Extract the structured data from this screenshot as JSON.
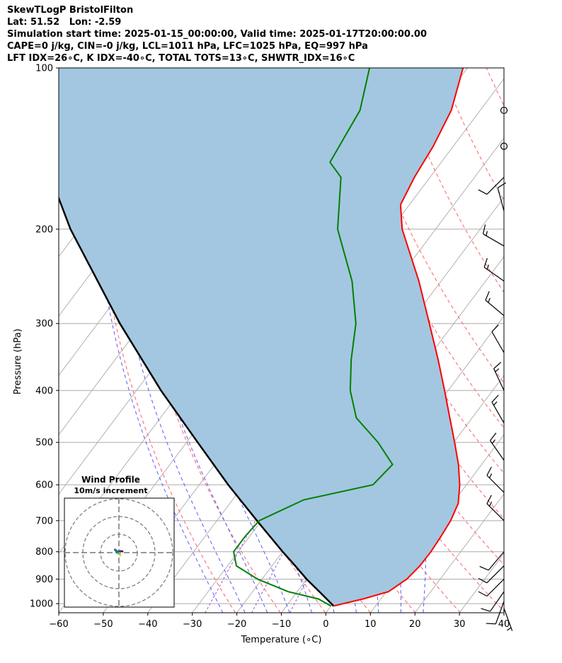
{
  "header": {
    "lines": [
      "SkewTLogP BristolFilton",
      "Lat: 51.52   Lon: -2.59",
      "Simulation start time: 2025-01-15_00:00:00, Valid time: 2025-01-17T20:00:00.00",
      "CAPE=0 j/kg, CIN=-0 j/kg, LCL=1011 hPa, LFC=1025 hPa, EQ=997 hPa",
      "LFT IDX=26∘C, K IDX=-40∘C, TOTAL TOTS=13∘C, SHWTR_IDX=16∘C"
    ]
  },
  "chart_data": {
    "type": "skewt-logp",
    "xlabel": "Temperature (∘C)",
    "ylabel": "Pressure (hPa)",
    "xlim": [
      -60,
      40
    ],
    "ylim": [
      1040,
      100
    ],
    "x_ticks": [
      -60,
      -50,
      -40,
      -30,
      -20,
      -10,
      0,
      10,
      20,
      30,
      40
    ],
    "y_ticks": [
      100,
      200,
      300,
      400,
      500,
      600,
      700,
      800,
      900,
      1000
    ],
    "y_scale": "log",
    "grid": true,
    "colors": {
      "temperature": "#ff0000",
      "dewpoint": "#008000",
      "parcel": "#000000",
      "shading": "#a3c7e0",
      "dry_adiabats": "#ff6060",
      "moist_adiabats": "#5a5aff",
      "mixing_ratio": "#9a4fd0",
      "isotherms": "#aaaaaa"
    },
    "temperature": [
      {
        "p": 1010,
        "t": 0.6
      },
      {
        "p": 980,
        "t": 6
      },
      {
        "p": 950,
        "t": 10.5
      },
      {
        "p": 900,
        "t": 12.5
      },
      {
        "p": 850,
        "t": 13.2
      },
      {
        "p": 800,
        "t": 13.3
      },
      {
        "p": 750,
        "t": 13.0
      },
      {
        "p": 700,
        "t": 12.5
      },
      {
        "p": 650,
        "t": 11.3
      },
      {
        "p": 600,
        "t": 8.5
      },
      {
        "p": 550,
        "t": 4.8
      },
      {
        "p": 500,
        "t": 0.2
      },
      {
        "p": 450,
        "t": -5.0
      },
      {
        "p": 400,
        "t": -10.8
      },
      {
        "p": 350,
        "t": -17.5
      },
      {
        "p": 300,
        "t": -25.5
      },
      {
        "p": 250,
        "t": -35.0
      },
      {
        "p": 200,
        "t": -47.5
      },
      {
        "p": 180,
        "t": -52.0
      },
      {
        "p": 160,
        "t": -53.5
      },
      {
        "p": 140,
        "t": -54.5
      },
      {
        "p": 120,
        "t": -56.5
      },
      {
        "p": 100,
        "t": -61.0
      }
    ],
    "dewpoint": [
      {
        "p": 1010,
        "t": 0.0
      },
      {
        "p": 980,
        "t": -4
      },
      {
        "p": 950,
        "t": -12
      },
      {
        "p": 900,
        "t": -21
      },
      {
        "p": 850,
        "t": -28.0
      },
      {
        "p": 800,
        "t": -31.0
      },
      {
        "p": 750,
        "t": -31.0
      },
      {
        "p": 700,
        "t": -30.5
      },
      {
        "p": 640,
        "t": -24.0
      },
      {
        "p": 600,
        "t": -11.0
      },
      {
        "p": 550,
        "t": -10.0
      },
      {
        "p": 500,
        "t": -17.0
      },
      {
        "p": 450,
        "t": -26.0
      },
      {
        "p": 400,
        "t": -32.0
      },
      {
        "p": 350,
        "t": -37.0
      },
      {
        "p": 300,
        "t": -42.0
      },
      {
        "p": 250,
        "t": -50.0
      },
      {
        "p": 200,
        "t": -62.0
      },
      {
        "p": 160,
        "t": -70.0
      },
      {
        "p": 150,
        "t": -75.0
      },
      {
        "p": 120,
        "t": -77.0
      },
      {
        "p": 100,
        "t": -82.0
      }
    ],
    "parcel": [
      {
        "p": 1010,
        "t": 0.6
      },
      {
        "p": 950,
        "t": -5.0
      },
      {
        "p": 900,
        "t": -10.0
      },
      {
        "p": 850,
        "t": -14.8
      },
      {
        "p": 800,
        "t": -20.0
      },
      {
        "p": 700,
        "t": -31.0
      },
      {
        "p": 600,
        "t": -43.5
      },
      {
        "p": 500,
        "t": -57.5
      },
      {
        "p": 400,
        "t": -74.5
      },
      {
        "p": 300,
        "t": -95.0
      },
      {
        "p": 200,
        "t": -122.0
      },
      {
        "p": 150,
        "t": -139.0
      },
      {
        "p": 100,
        "t": -162.0
      }
    ],
    "dry_adiabats_theta_K": [
      250,
      260,
      270,
      280,
      290,
      300,
      310,
      320,
      330,
      340,
      350,
      360,
      380,
      400,
      420,
      440
    ],
    "moist_adiabats_K": [
      250,
      255,
      260,
      265,
      270,
      275,
      280,
      285,
      290,
      295
    ],
    "mixing_ratios_gkg": [
      0.4,
      1,
      2
    ],
    "wind_barbs": [
      {
        "p": 1020,
        "speed_kt": 5,
        "dir_deg": 160
      },
      {
        "p": 990,
        "speed_kt": 10,
        "dir_deg": 200
      },
      {
        "p": 950,
        "speed_kt": 10,
        "dir_deg": 215
      },
      {
        "p": 900,
        "speed_kt": 10,
        "dir_deg": 225
      },
      {
        "p": 850,
        "speed_kt": 10,
        "dir_deg": 225
      },
      {
        "p": 800,
        "speed_kt": 10,
        "dir_deg": 220
      },
      {
        "p": 700,
        "speed_kt": 15,
        "dir_deg": 315
      },
      {
        "p": 620,
        "speed_kt": 15,
        "dir_deg": 315
      },
      {
        "p": 540,
        "speed_kt": 15,
        "dir_deg": 325
      },
      {
        "p": 460,
        "speed_kt": 15,
        "dir_deg": 330
      },
      {
        "p": 400,
        "speed_kt": 15,
        "dir_deg": 335
      },
      {
        "p": 340,
        "speed_kt": 10,
        "dir_deg": 330
      },
      {
        "p": 290,
        "speed_kt": 15,
        "dir_deg": 310
      },
      {
        "p": 250,
        "speed_kt": 15,
        "dir_deg": 305
      },
      {
        "p": 215,
        "speed_kt": 15,
        "dir_deg": 300
      },
      {
        "p": 185,
        "speed_kt": 10,
        "dir_deg": 345
      },
      {
        "p": 160,
        "speed_kt": 10,
        "dir_deg": 225
      },
      {
        "p": 140,
        "speed_kt": 0,
        "dir_deg": 0
      },
      {
        "p": 120,
        "speed_kt": 0,
        "dir_deg": 0
      }
    ],
    "hodograph": {
      "title": "Wind Profile",
      "subtitle": "10m/s increment",
      "rings_ms": [
        10,
        20,
        30
      ],
      "path": [
        [
          1.5,
          -0.5
        ],
        [
          1.7,
          -1.0
        ],
        [
          1.6,
          0.5
        ],
        [
          1.2,
          1.5
        ],
        [
          0.5,
          2.0
        ],
        [
          -1.0,
          2.2
        ],
        [
          -2.0,
          2.0
        ],
        [
          -2.5,
          2.3
        ],
        [
          -3.2,
          3.5
        ],
        [
          -4.0,
          5.0
        ],
        [
          -5.0,
          6.0
        ],
        [
          -4.8,
          6.5
        ],
        [
          -3.5,
          5.5
        ],
        [
          -2.0,
          4.0
        ],
        [
          0.5,
          4.2
        ],
        [
          2.0,
          4.6
        ],
        [
          3.0,
          4.3
        ],
        [
          4.0,
          4.2
        ],
        [
          4.5,
          4.0
        ]
      ]
    }
  }
}
